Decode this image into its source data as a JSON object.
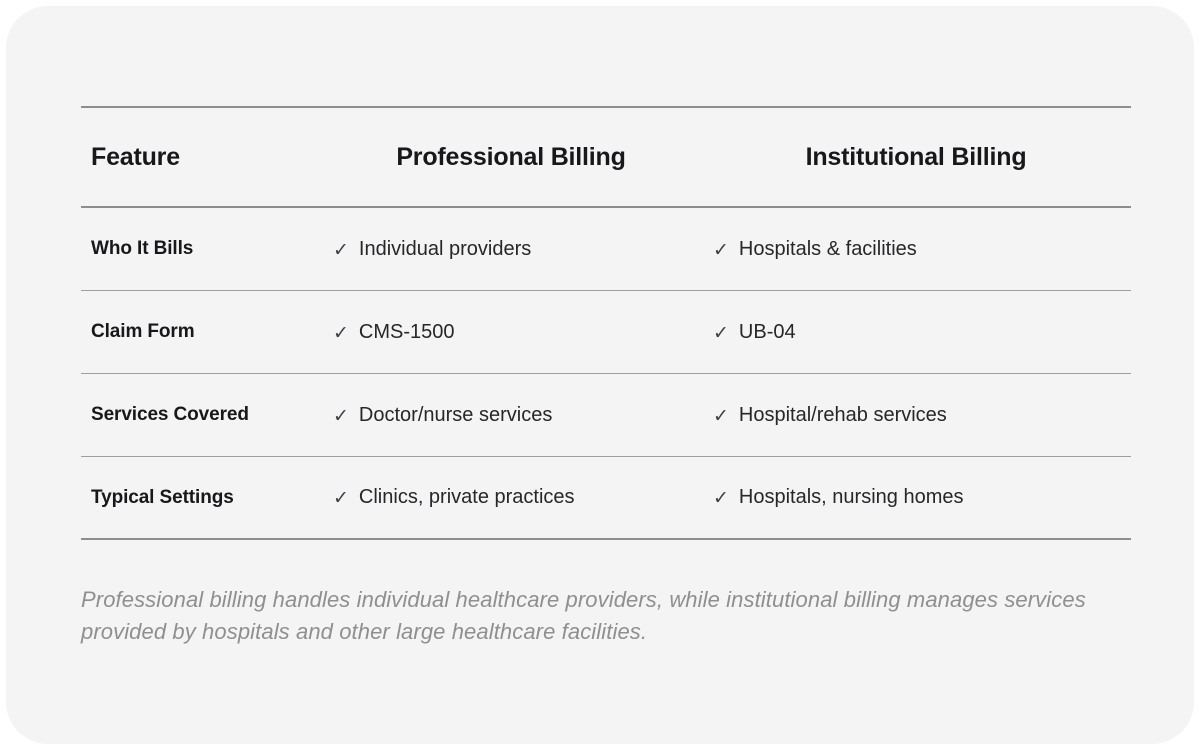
{
  "table": {
    "check_icon": "✓",
    "columns": {
      "feature": "Feature",
      "professional": "Professional Billing",
      "institutional": "Institutional Billing"
    },
    "rows": [
      {
        "feature": "Who It Bills",
        "professional": "Individual providers",
        "institutional": "Hospitals & facilities"
      },
      {
        "feature": "Claim Form",
        "professional": "CMS-1500",
        "institutional": "UB-04"
      },
      {
        "feature": "Services Covered",
        "professional": "Doctor/nurse services",
        "institutional": "Hospital/rehab services"
      },
      {
        "feature": "Typical Settings",
        "professional": "Clinics, private practices",
        "institutional": "Hospitals, nursing homes"
      }
    ]
  },
  "footnote": "Professional billing handles individual healthcare providers, while institutional billing manages services provided by hospitals and other large healthcare facilities.",
  "colors": {
    "card_background": "#f4f4f5",
    "page_background": "#ffffff",
    "heavy_rule": "#8d8d8d",
    "light_rule": "#9e9e9e",
    "heading_text": "#18181b",
    "cell_text": "#27272a",
    "footnote_text": "#8f8f8f"
  },
  "chart_data": {
    "type": "table",
    "title": "",
    "columns": [
      "Feature",
      "Professional Billing",
      "Institutional Billing"
    ],
    "rows": [
      [
        "Who It Bills",
        "Individual providers",
        "Hospitals & facilities"
      ],
      [
        "Claim Form",
        "CMS-1500",
        "UB-04"
      ],
      [
        "Services Covered",
        "Doctor/nurse services",
        "Hospital/rehab services"
      ],
      [
        "Typical Settings",
        "Clinics, private practices",
        "Hospitals, nursing homes"
      ]
    ],
    "annotations": [
      "Professional billing handles individual healthcare providers, while institutional billing manages services provided by hospitals and other large healthcare facilities."
    ]
  }
}
